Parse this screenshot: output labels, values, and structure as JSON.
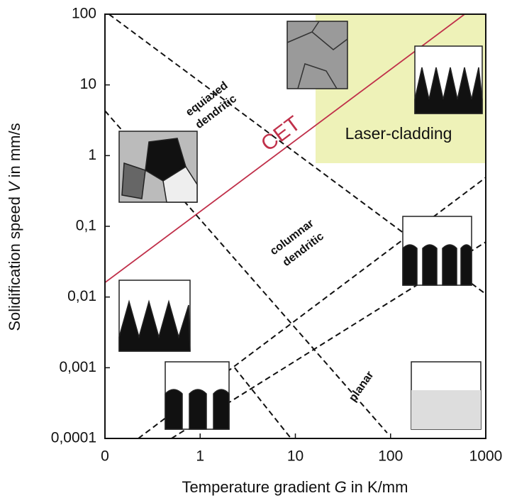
{
  "chart_data": {
    "type": "line",
    "xlabel": [
      "Temperature gradient",
      "G",
      "in K/mm"
    ],
    "ylabel": [
      "Solidification speed",
      "V",
      "in mm/s"
    ],
    "xscale": "log",
    "yscale": "log",
    "xlim": [
      0.1,
      1000
    ],
    "ylim": [
      0.0001,
      100
    ],
    "xticks": [
      {
        "value": 0.1,
        "label": "0"
      },
      1,
      10,
      100,
      1000
    ],
    "yticks": [
      {
        "value": 0.0001,
        "label": "0,0001"
      },
      {
        "value": 0.001,
        "label": "0,001"
      },
      {
        "value": 0.01,
        "label": "0,01"
      },
      {
        "value": 0.1,
        "label": "0,1"
      },
      1,
      10,
      100
    ],
    "series": [
      {
        "name": "CET",
        "color": "#c0304a",
        "dashed": false,
        "x": [
          0.1,
          600
        ],
        "values": [
          0.016,
          100
        ]
      },
      {
        "color": "#111111",
        "dashed": true,
        "x": [
          0.11,
          1000
        ],
        "values": [
          100,
          0.011
        ]
      },
      {
        "color": "#111111",
        "dashed": true,
        "x": [
          0.1,
          92
        ],
        "values": [
          4.3,
          0.00012
        ]
      },
      {
        "color": "#111111",
        "dashed": true,
        "x": [
          0.224,
          1000
        ],
        "values": [
          0.0001,
          0.49
        ]
      },
      {
        "color": "#111111",
        "dashed": true,
        "x": [
          0.5,
          1000
        ],
        "values": [
          0.0001,
          0.06
        ]
      },
      {
        "color": "#111111",
        "dashed": true,
        "x": [
          2.3,
          9
        ],
        "values": [
          0.001,
          0.0001
        ]
      }
    ],
    "annotations": [
      "equiaxed",
      "dendritic",
      "Laser-cladding",
      "columnar",
      "dendritic",
      "planar"
    ]
  }
}
